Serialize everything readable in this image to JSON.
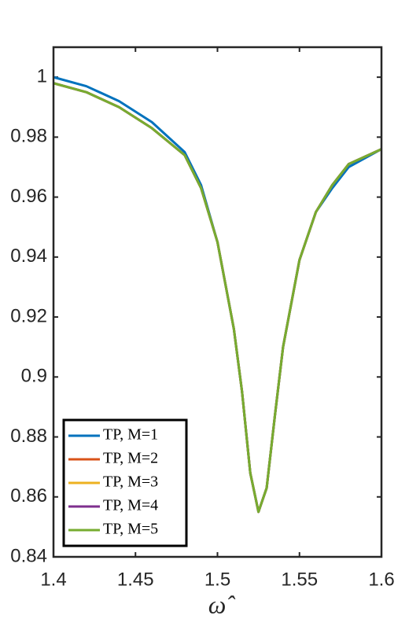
{
  "chart_data": {
    "type": "line",
    "xlabel": "ω̂",
    "x": [
      1.4,
      1.42,
      1.44,
      1.46,
      1.48,
      1.49,
      1.5,
      1.51,
      1.515,
      1.52,
      1.525,
      1.53,
      1.535,
      1.54,
      1.55,
      1.56,
      1.57,
      1.58,
      1.6
    ],
    "series": [
      {
        "name": "TP, M=1",
        "color": "#0072bd",
        "values": [
          1.0,
          0.997,
          0.992,
          0.985,
          0.975,
          0.964,
          0.945,
          0.916,
          0.895,
          0.868,
          0.855,
          0.863,
          0.887,
          0.91,
          0.939,
          0.955,
          0.963,
          0.97,
          0.976
        ]
      },
      {
        "name": "TP, M=2",
        "color": "#d95319",
        "values": [
          0.998,
          0.995,
          0.99,
          0.983,
          0.974,
          0.963,
          0.945,
          0.916,
          0.895,
          0.868,
          0.855,
          0.863,
          0.887,
          0.91,
          0.939,
          0.955,
          0.964,
          0.971,
          0.976
        ]
      },
      {
        "name": "TP, M=3",
        "color": "#edb120",
        "values": [
          0.998,
          0.995,
          0.99,
          0.983,
          0.974,
          0.963,
          0.945,
          0.916,
          0.895,
          0.868,
          0.855,
          0.863,
          0.887,
          0.91,
          0.939,
          0.955,
          0.964,
          0.971,
          0.976
        ]
      },
      {
        "name": "TP, M=4",
        "color": "#7e2f8e",
        "values": [
          0.998,
          0.995,
          0.99,
          0.983,
          0.974,
          0.963,
          0.945,
          0.916,
          0.895,
          0.868,
          0.855,
          0.863,
          0.887,
          0.91,
          0.939,
          0.955,
          0.964,
          0.971,
          0.976
        ]
      },
      {
        "name": "TP, M=5",
        "color": "#77ac30",
        "values": [
          0.998,
          0.995,
          0.99,
          0.983,
          0.974,
          0.963,
          0.945,
          0.916,
          0.895,
          0.868,
          0.855,
          0.863,
          0.887,
          0.91,
          0.939,
          0.955,
          0.964,
          0.971,
          0.976
        ]
      }
    ],
    "xlim": [
      1.4,
      1.6
    ],
    "xticks": [
      1.4,
      1.45,
      1.5,
      1.55,
      1.6
    ],
    "ylim": [
      0.84,
      1.01
    ],
    "yticks": [
      0.84,
      0.86,
      0.88,
      0.9,
      0.92,
      0.94,
      0.96,
      0.98,
      1
    ],
    "grid": false,
    "legend": "lower left"
  }
}
